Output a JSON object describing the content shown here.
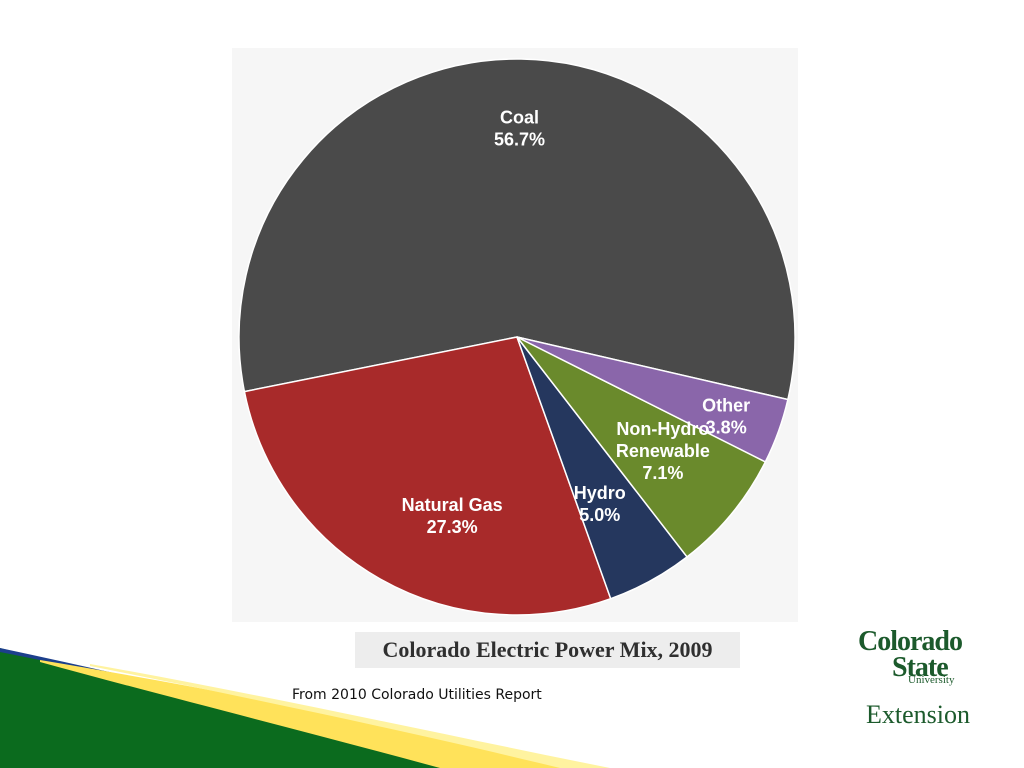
{
  "chart_data": {
    "type": "pie",
    "title": "Colorado Electric Power Mix, 2009",
    "categories": [
      "Coal",
      "Natural Gas",
      "Hydro",
      "Non-Hydro Renewable",
      "Other"
    ],
    "values": [
      56.7,
      27.3,
      5.0,
      7.1,
      3.8
    ],
    "value_labels": [
      "56.7%",
      "27.3%",
      "5.0%",
      "7.1%",
      "3.8%"
    ],
    "label_lines": [
      [
        "Coal"
      ],
      [
        "Natural Gas"
      ],
      [
        "Hydro"
      ],
      [
        "Non-Hydro",
        "Renewable"
      ],
      [
        "Other"
      ]
    ],
    "colors": [
      "#4a4a4a",
      "#a82a2a",
      "#25375e",
      "#6a8a2c",
      "#8a66aa"
    ],
    "legend": "none"
  },
  "footer": {
    "source": "From 2010 Colorado Utilities Report",
    "logo_csu": [
      "Colorado",
      "State",
      "University"
    ],
    "logo_extension": "Extension"
  }
}
